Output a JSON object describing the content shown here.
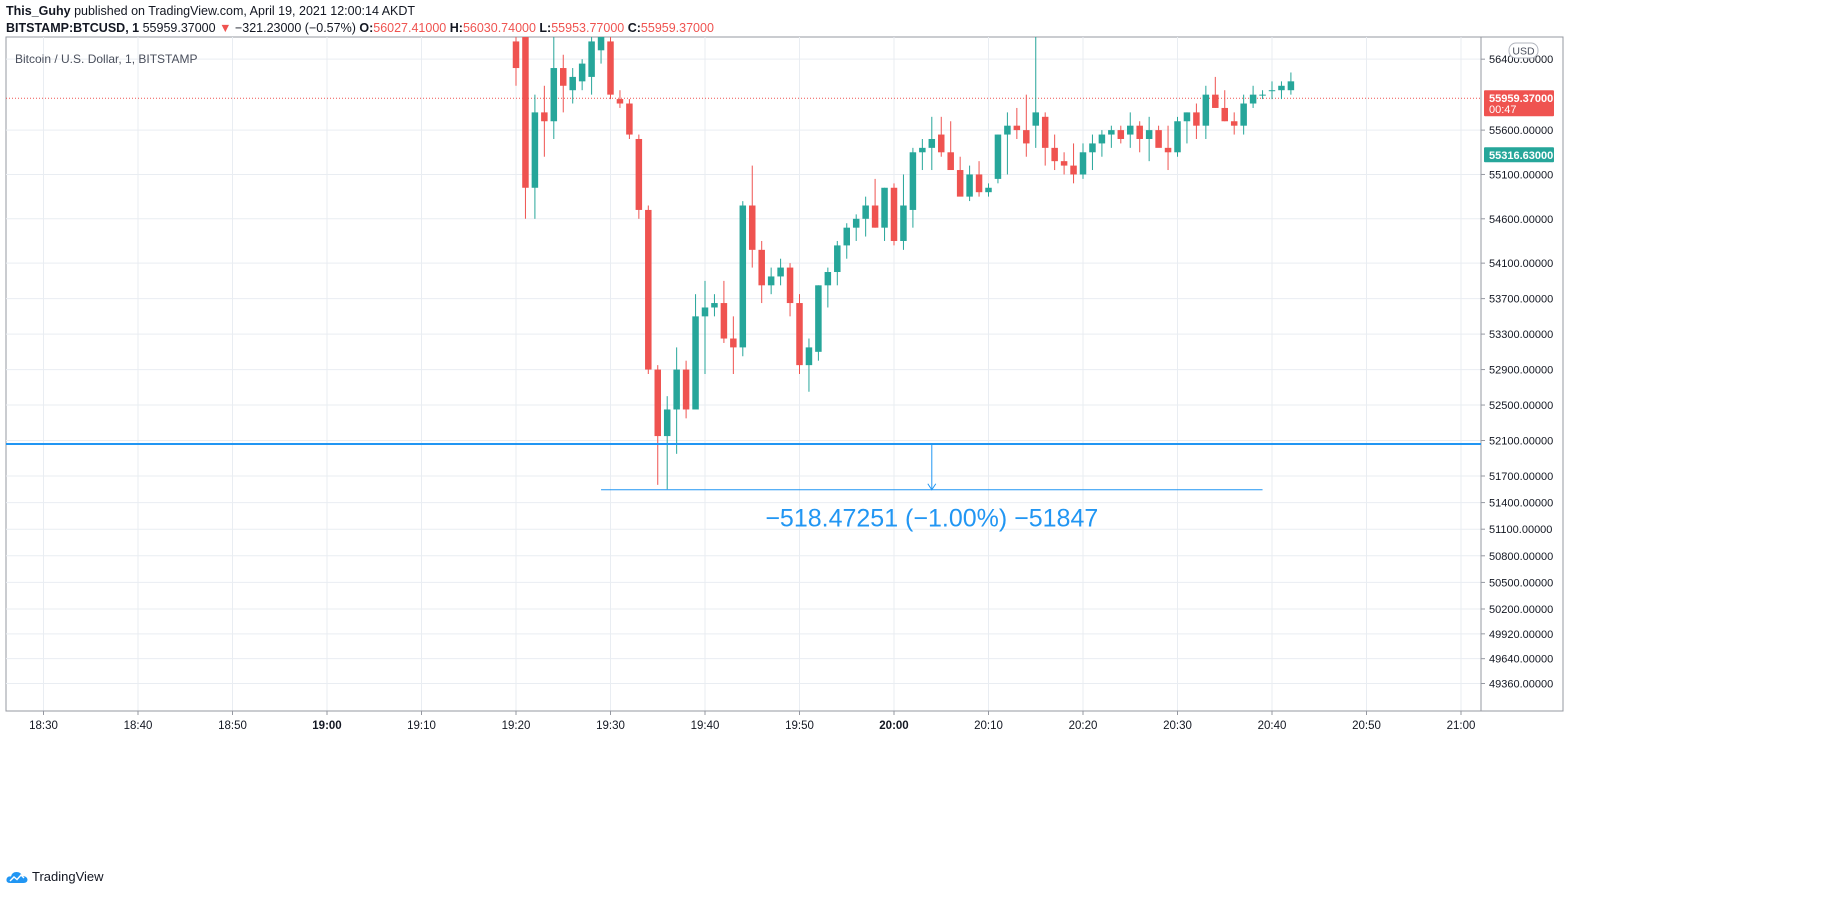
{
  "header": {
    "author": "This_Guhy",
    "published_text": "published on TradingView.com, April 19, 2021 12:00:14 AKDT",
    "symbol": "BITSTAMP:BTCUSD, 1",
    "last": "55959.37000",
    "change_arrow": "▼",
    "change": "−321.23000 (−0.57%)",
    "o_label": "O:",
    "o": "56027.41000",
    "h_label": "H:",
    "h": "56030.74000",
    "l_label": "L:",
    "l": "55953.77000",
    "c_label": "C:",
    "c": "55959.37000"
  },
  "legend_title": "Bitcoin / U.S. Dollar, 1, BITSTAMP",
  "currency_badge": "USD",
  "footer_brand": "TradingView",
  "logo_icon": "tradingview-cloud-icon",
  "colors": {
    "up": "#26a69a",
    "down": "#ef5350",
    "accent": "#2196f3",
    "grid": "#e9edf2"
  },
  "chart_data": {
    "type": "candlestick",
    "title": "Bitcoin / U.S. Dollar, 1, BITSTAMP",
    "ylim": [
      49050,
      56650
    ],
    "y_ticks": [
      "56400.00000",
      "55600.00000",
      "55100.00000",
      "54600.00000",
      "54100.00000",
      "53700.00000",
      "53300.00000",
      "52900.00000",
      "52500.00000",
      "52100.00000",
      "51700.00000",
      "51400.00000",
      "51100.00000",
      "50800.00000",
      "50500.00000",
      "50200.00000",
      "49920.00000",
      "49640.00000",
      "49360.00000"
    ],
    "x_ticks": [
      "18:30",
      "18:40",
      "18:50",
      "19:00",
      "19:10",
      "19:20",
      "19:30",
      "19:40",
      "19:50",
      "20:00",
      "20:10",
      "20:20",
      "20:30",
      "20:40",
      "20:50",
      "21:00"
    ],
    "x_tick_minutes": [
      -50,
      -40,
      -30,
      -20,
      -10,
      0,
      10,
      20,
      30,
      40,
      50,
      60,
      70,
      80,
      90,
      100
    ],
    "bold_ticks": [
      "19:00",
      "20:00"
    ],
    "price_tags": [
      {
        "value": 55959.37,
        "label": "55959.37000",
        "sublabel": "00:47",
        "color": "#ef5350"
      },
      {
        "value": 55316.63,
        "label": "55316.63000",
        "color": "#26a69a"
      }
    ],
    "horizontal_line": 52060,
    "measure": {
      "from_minute": 9,
      "to_minute": 79,
      "at_minute": 44,
      "from_value": 52060,
      "to_value": 51545,
      "label": "−518.47251 (−1.00%) −51847"
    },
    "candles": [
      [
        0,
        56600,
        56950,
        56100,
        56300
      ],
      [
        1,
        56700,
        56800,
        54600,
        54950
      ],
      [
        2,
        54950,
        56000,
        54600,
        55800
      ],
      [
        3,
        55800,
        56100,
        55300,
        55700
      ],
      [
        4,
        55700,
        56700,
        55500,
        56300
      ],
      [
        5,
        56300,
        56450,
        55800,
        56100
      ],
      [
        6,
        56050,
        56300,
        55900,
        56200
      ],
      [
        7,
        56150,
        56400,
        56050,
        56350
      ],
      [
        8,
        56200,
        56800,
        56000,
        56600
      ],
      [
        9,
        56500,
        56700,
        56350,
        56650
      ],
      [
        10,
        56600,
        56800,
        55950,
        56000
      ],
      [
        11,
        55950,
        56050,
        55850,
        55900
      ],
      [
        12,
        55900,
        55950,
        55500,
        55550
      ],
      [
        13,
        55500,
        55550,
        54600,
        54700
      ],
      [
        14,
        54700,
        54750,
        52850,
        52900
      ],
      [
        15,
        52900,
        52950,
        51600,
        52150
      ],
      [
        16,
        52150,
        52600,
        51550,
        52450
      ],
      [
        17,
        52450,
        53150,
        51950,
        52900
      ],
      [
        18,
        52900,
        53000,
        52350,
        52450
      ],
      [
        19,
        52450,
        53750,
        52500,
        53500
      ],
      [
        20,
        53500,
        53900,
        52850,
        53600
      ],
      [
        21,
        53600,
        53750,
        53500,
        53650
      ],
      [
        22,
        53650,
        53900,
        53200,
        53250
      ],
      [
        23,
        53250,
        53500,
        52850,
        53150
      ],
      [
        24,
        53150,
        54800,
        53050,
        54750
      ],
      [
        25,
        54750,
        55200,
        54050,
        54250
      ],
      [
        26,
        54250,
        54350,
        53650,
        53850
      ],
      [
        27,
        53850,
        54050,
        53750,
        53950
      ],
      [
        28,
        53950,
        54150,
        53850,
        54050
      ],
      [
        29,
        54050,
        54100,
        53500,
        53650
      ],
      [
        30,
        53650,
        53750,
        52850,
        52950
      ],
      [
        31,
        52950,
        53250,
        52650,
        53150
      ],
      [
        32,
        53100,
        53850,
        53000,
        53850
      ],
      [
        33,
        53850,
        54050,
        53600,
        54000
      ],
      [
        34,
        54000,
        54350,
        53850,
        54300
      ],
      [
        35,
        54300,
        54550,
        54150,
        54500
      ],
      [
        36,
        54500,
        54650,
        54350,
        54600
      ],
      [
        37,
        54600,
        54850,
        54400,
        54750
      ],
      [
        38,
        54750,
        55050,
        54500,
        54500
      ],
      [
        39,
        54500,
        54950,
        54350,
        54950
      ],
      [
        40,
        54950,
        55000,
        54300,
        54350
      ],
      [
        41,
        54350,
        55100,
        54250,
        54750
      ],
      [
        42,
        54700,
        55400,
        54500,
        55350
      ],
      [
        43,
        55350,
        55500,
        55150,
        55400
      ],
      [
        44,
        55400,
        55750,
        55150,
        55500
      ],
      [
        45,
        55550,
        55750,
        55300,
        55350
      ],
      [
        46,
        55350,
        55700,
        55200,
        55150
      ],
      [
        47,
        55150,
        55300,
        54900,
        54850
      ],
      [
        48,
        54850,
        55200,
        54800,
        55100
      ],
      [
        49,
        55100,
        55250,
        54850,
        54900
      ],
      [
        50,
        54900,
        55000,
        54850,
        54950
      ],
      [
        51,
        55050,
        55550,
        55000,
        55550
      ],
      [
        52,
        55550,
        55800,
        55100,
        55650
      ],
      [
        53,
        55650,
        55850,
        55500,
        55600
      ],
      [
        54,
        55600,
        56000,
        55300,
        55450
      ],
      [
        55,
        55650,
        56900,
        55400,
        55800
      ],
      [
        56,
        55750,
        55800,
        55200,
        55400
      ],
      [
        57,
        55400,
        55550,
        55150,
        55250
      ],
      [
        58,
        55250,
        55350,
        55100,
        55200
      ],
      [
        59,
        55200,
        55450,
        55000,
        55100
      ],
      [
        60,
        55100,
        55450,
        55050,
        55350
      ],
      [
        61,
        55350,
        55550,
        55150,
        55450
      ],
      [
        62,
        55450,
        55600,
        55300,
        55550
      ],
      [
        63,
        55550,
        55650,
        55400,
        55600
      ],
      [
        64,
        55600,
        55650,
        55450,
        55500
      ],
      [
        65,
        55550,
        55800,
        55400,
        55650
      ],
      [
        66,
        55650,
        55700,
        55350,
        55500
      ],
      [
        67,
        55500,
        55750,
        55250,
        55600
      ],
      [
        68,
        55600,
        55650,
        55450,
        55400
      ],
      [
        69,
        55400,
        55650,
        55150,
        55350
      ],
      [
        70,
        55350,
        55750,
        55300,
        55700
      ],
      [
        71,
        55700,
        55800,
        55450,
        55800
      ],
      [
        72,
        55800,
        55900,
        55500,
        55650
      ],
      [
        73,
        55650,
        56100,
        55500,
        56000
      ],
      [
        74,
        56000,
        56200,
        55850,
        55850
      ],
      [
        75,
        55850,
        56050,
        55700,
        55700
      ],
      [
        76,
        55700,
        55800,
        55550,
        55650
      ],
      [
        77,
        55650,
        56000,
        55550,
        55900
      ],
      [
        78,
        55900,
        56100,
        55850,
        56000
      ],
      [
        79,
        56000,
        56050,
        55950,
        56000
      ],
      [
        80,
        56050,
        56150,
        55950,
        56050
      ],
      [
        81,
        56050,
        56150,
        55950,
        56100
      ],
      [
        82,
        56050,
        56250,
        56000,
        56150
      ]
    ]
  }
}
